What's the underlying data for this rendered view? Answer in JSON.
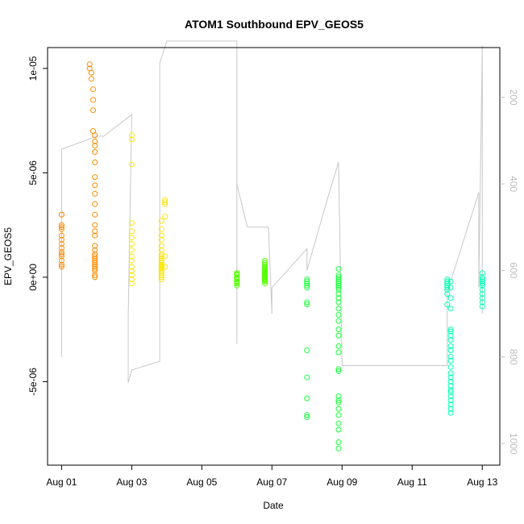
{
  "chart_data": {
    "type": "scatter",
    "title": "ATOM1 Southbound EPV_GEOS5",
    "xlabel": "Date",
    "ylabel": "EPV_GEOS5",
    "x_unit": "day of August",
    "xlim": [
      0.6,
      13.5
    ],
    "ylim": [
      -9e-06,
      1.1e-05
    ],
    "x_ticks": [
      {
        "value": 1,
        "label": "Aug 01"
      },
      {
        "value": 3,
        "label": "Aug 03"
      },
      {
        "value": 5,
        "label": "Aug 05"
      },
      {
        "value": 7,
        "label": "Aug 07"
      },
      {
        "value": 9,
        "label": "Aug 09"
      },
      {
        "value": 11,
        "label": "Aug 11"
      },
      {
        "value": 13,
        "label": "Aug 13"
      }
    ],
    "y_ticks": [
      {
        "value": -5e-06,
        "label": "-5e-06"
      },
      {
        "value": 0,
        "label": "0e+00"
      },
      {
        "value": 5e-06,
        "label": "5e-06"
      },
      {
        "value": 1e-05,
        "label": "1e-05"
      }
    ],
    "y2_ticks": [
      200,
      400,
      600,
      800,
      1000
    ],
    "y2_range": [
      85,
      1050
    ],
    "y2_reversed": true,
    "grid": false,
    "legend": "none",
    "colors": {
      "flight_track": "#c8c8c8",
      "points_by_day": [
        "#ff8c00",
        "#ffe600",
        "#55ff00",
        "#1aff3c",
        "#00ffb4"
      ]
    },
    "flight_track_y2": [
      [
        1.0,
        800
      ],
      [
        1.0,
        320
      ],
      [
        2.0,
        290
      ],
      [
        2.2,
        290
      ],
      [
        3.0,
        240
      ],
      [
        2.9,
        710
      ],
      [
        2.9,
        860
      ],
      [
        3.0,
        830
      ],
      [
        3.8,
        810
      ],
      [
        3.8,
        120
      ],
      [
        4.0,
        70
      ],
      [
        6.0,
        70
      ],
      [
        6.0,
        770
      ],
      [
        6.0,
        400
      ],
      [
        6.3,
        500
      ],
      [
        6.9,
        500
      ],
      [
        7.0,
        700
      ],
      [
        7.0,
        640
      ],
      [
        8.0,
        550
      ],
      [
        8.0,
        600
      ],
      [
        8.6,
        430
      ],
      [
        8.9,
        350
      ],
      [
        9.0,
        820
      ],
      [
        9.2,
        820
      ],
      [
        12.0,
        820
      ],
      [
        12.0,
        650
      ],
      [
        12.9,
        420
      ],
      [
        12.9,
        640
      ],
      [
        13.0,
        80
      ],
      [
        13.0,
        700
      ]
    ],
    "series": [
      {
        "x": [
          1.0,
          1.0,
          1.0,
          1.0,
          1.0,
          1.0,
          1.0,
          1.0,
          1.0,
          1.0,
          1.0,
          1.0,
          1.0,
          1.0,
          1.0,
          1.8,
          1.8,
          1.85,
          1.85,
          1.9,
          1.9,
          1.9,
          1.9,
          1.95,
          1.95,
          1.95,
          1.95,
          1.95,
          1.95,
          1.95,
          1.95,
          1.95,
          1.95,
          1.95,
          1.95,
          1.95,
          1.95,
          1.95,
          1.95,
          1.95,
          1.95,
          1.95,
          1.95,
          1.95,
          1.95,
          1.95,
          1.95,
          1.95,
          1.95
        ],
        "y": [
          3e-06,
          2.5e-06,
          2.3e-06,
          2e-06,
          1.6e-06,
          1.4e-06,
          1.2e-06,
          1e-06,
          8e-07,
          6e-07,
          5e-07,
          3e-06,
          2.4e-06,
          1.8e-06,
          1.1e-06,
          1.02e-05,
          1e-05,
          9.8e-06,
          9.5e-06,
          9e-06,
          8.5e-06,
          8e-06,
          7e-06,
          6.8e-06,
          6.5e-06,
          6.3e-06,
          6e-06,
          5.5e-06,
          4.8e-06,
          4.4e-06,
          4e-06,
          3.5e-06,
          3e-06,
          2.5e-06,
          2.2e-06,
          2e-06,
          1.5e-06,
          1.3e-06,
          1.1e-06,
          1e-06,
          9e-07,
          8e-07,
          7e-07,
          6e-07,
          5e-07,
          4e-07,
          3e-07,
          1e-07,
          0.0
        ]
      },
      {
        "x": [
          3.0,
          3.0,
          3.0,
          3.0,
          3.0,
          3.0,
          3.0,
          3.0,
          3.0,
          3.0,
          3.0,
          3.0,
          3.0,
          3.0,
          3.0,
          3.85,
          3.85,
          3.85,
          3.85,
          3.85,
          3.85,
          3.85,
          3.85,
          3.85,
          3.85,
          3.85,
          3.85,
          3.85,
          3.85,
          3.85,
          3.85,
          3.85,
          3.85,
          3.85,
          3.85,
          3.85,
          3.95,
          3.95,
          3.95,
          3.95,
          3.95,
          3.95
        ],
        "y": [
          6.8e-06,
          6.6e-06,
          5.4e-06,
          2.6e-06,
          2.2e-06,
          1.9e-06,
          1.6e-06,
          1.3e-06,
          1e-06,
          8e-07,
          5e-07,
          3e-07,
          1e-07,
          -1e-07,
          -3e-07,
          2.7e-06,
          2.3e-06,
          2e-06,
          1.8e-06,
          1.5e-06,
          1.3e-06,
          1.1e-06,
          1e-06,
          9e-07,
          8e-07,
          7e-07,
          6e-07,
          5.5e-07,
          5e-07,
          4.5e-07,
          4e-07,
          3e-07,
          2e-07,
          1e-07,
          0.0,
          -1e-07,
          3.7e-06,
          3.6e-06,
          3.5e-06,
          2.9e-06,
          1e-06,
          5e-07
        ]
      },
      {
        "x": [
          6.0,
          6.0,
          6.0,
          6.0,
          6.0,
          6.0,
          6.0,
          6.0,
          6.0,
          6.0,
          6.8,
          6.8,
          6.8,
          6.8,
          6.8,
          6.8,
          6.8,
          6.8,
          6.8,
          6.8,
          6.8,
          6.8,
          6.8,
          6.8,
          6.8,
          6.8,
          6.8,
          6.8,
          6.8,
          6.8
        ],
        "y": [
          2e-07,
          1e-07,
          0.0,
          -1e-07,
          -2e-07,
          -3e-07,
          -4e-07,
          1.5e-07,
          -5e-08,
          -2.5e-07,
          7e-07,
          6e-07,
          5e-07,
          4e-07,
          3.5e-07,
          3e-07,
          2.5e-07,
          2e-07,
          1.5e-07,
          1e-07,
          5e-08,
          0.0,
          -5e-08,
          -1e-07,
          -2e-07,
          -3e-07,
          8e-07,
          4.5e-07,
          1.8e-07,
          -1.5e-07
        ]
      },
      {
        "x": [
          8.0,
          8.0,
          8.0,
          8.0,
          8.0,
          8.0,
          8.0,
          8.0,
          8.0,
          8.0,
          8.0,
          8.0,
          8.9,
          8.9,
          8.9,
          8.9,
          8.9,
          8.9,
          8.9,
          8.9,
          8.9,
          8.9,
          8.9,
          8.9,
          8.9,
          8.9,
          8.9,
          8.9,
          8.9,
          8.9,
          8.9,
          8.9,
          8.9,
          8.9,
          8.9,
          8.9,
          8.9,
          8.9,
          8.9,
          8.9,
          8.9,
          8.9
        ],
        "y": [
          -1e-07,
          -2e-07,
          -3e-07,
          -4e-07,
          -5e-07,
          -1.2e-06,
          -1.3e-06,
          -3.5e-06,
          -4.8e-06,
          -5.8e-06,
          -6.6e-06,
          -6.7e-06,
          4e-07,
          1e-07,
          0.0,
          -1e-07,
          -2e-07,
          -3e-07,
          -4e-07,
          -5e-07,
          -6e-07,
          -8e-07,
          -1e-06,
          -1.2e-06,
          -1.5e-06,
          -1.8e-06,
          -2.1e-06,
          -2.5e-06,
          -2.8e-06,
          -3.3e-06,
          -3.6e-06,
          -4.4e-06,
          -4.5e-06,
          -5.7e-06,
          -5.9e-06,
          -6e-06,
          -6.3e-06,
          -6.6e-06,
          -7e-06,
          -7.3e-06,
          -7.9e-06,
          -8.2e-06
        ]
      },
      {
        "x": [
          12.0,
          12.0,
          12.0,
          12.0,
          12.0,
          12.0,
          12.0,
          12.0,
          12.1,
          12.1,
          12.1,
          12.1,
          12.1,
          12.1,
          12.1,
          12.1,
          12.1,
          12.1,
          12.1,
          12.1,
          12.1,
          12.1,
          12.1,
          12.1,
          12.1,
          12.1,
          12.1,
          12.1,
          12.1,
          12.1,
          12.1,
          12.1,
          13.0,
          13.0,
          13.0,
          13.0,
          13.0,
          13.0,
          13.0,
          13.0,
          13.0,
          13.0,
          13.0
        ],
        "y": [
          -1e-07,
          -2e-07,
          -3e-07,
          -4e-07,
          -5e-07,
          -6e-07,
          -8e-07,
          -1.3e-06,
          -2.6e-06,
          -2.8e-06,
          -3e-06,
          -3.3e-06,
          -3.5e-06,
          -3.8e-06,
          -4e-06,
          -4.3e-06,
          -4.6e-06,
          -4.8e-06,
          -5e-06,
          -5.2e-06,
          -5.4e-06,
          -5.5e-06,
          -5.7e-06,
          -5.9e-06,
          -6.1e-06,
          -6.3e-06,
          -6.5e-06,
          -2.5e-06,
          -1.5e-06,
          -1e-06,
          -5e-07,
          -2e-07,
          2e-07,
          0.0,
          -1e-07,
          -2e-07,
          -3e-07,
          -4e-07,
          -6e-07,
          -8e-07,
          -1e-06,
          -1.2e-06,
          -1.4e-06
        ]
      }
    ]
  }
}
